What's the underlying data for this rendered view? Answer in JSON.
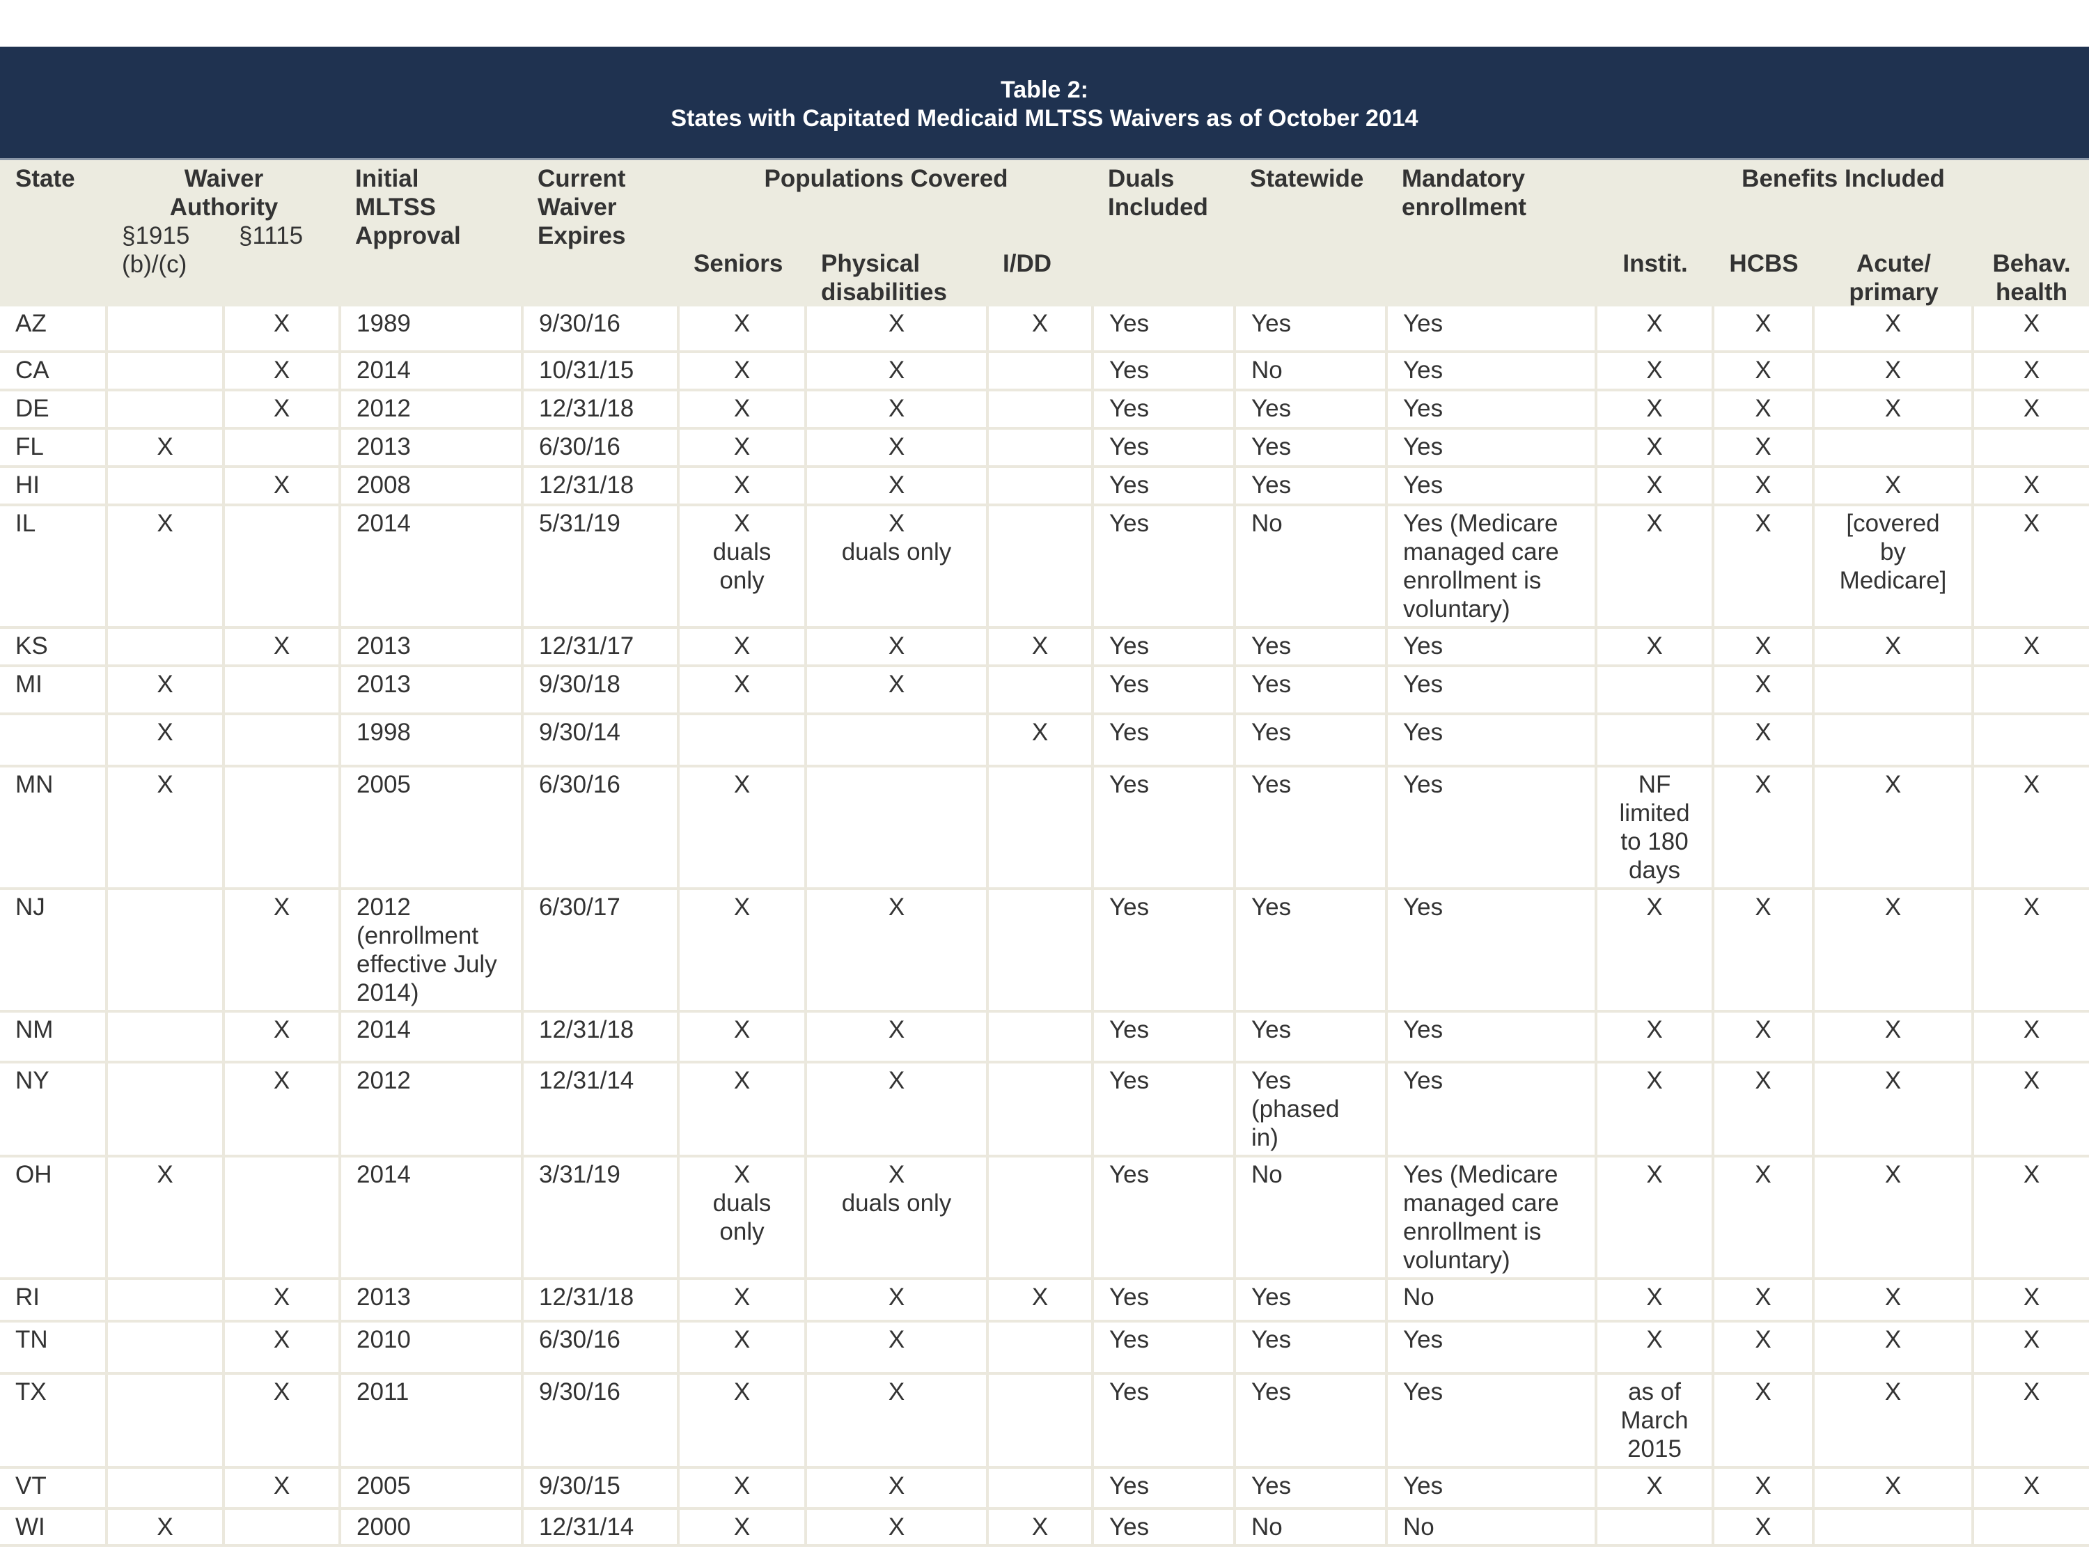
{
  "title": {
    "line1": "Table 2:",
    "line2": "States with Capitated Medicaid MLTSS Waivers as of October 2014"
  },
  "header": {
    "state": "State",
    "waiver_authority": "Waiver\nAuthority",
    "s1915": "§1915\n(b)/(c)",
    "s1115": "§1115",
    "initial": "Initial\nMLTSS\nApproval",
    "current": "Current\nWaiver\nExpires",
    "populations": "Populations Covered",
    "seniors": "Seniors",
    "physical": "Physical\ndisabilities",
    "idd": "I/DD",
    "duals": "Duals\nIncluded",
    "statewide": "Statewide",
    "mandatory": "Mandatory\nenrollment",
    "benefits": "Benefits Included",
    "instit": "Instit.",
    "hcbs": "HCBS",
    "acute": "Acute/\nprimary",
    "behav": "Behav.\nhealth"
  },
  "rows": [
    [
      "AZ",
      "",
      "X",
      "1989",
      "9/30/16",
      "X",
      "X",
      "X",
      "Yes",
      "Yes",
      "Yes",
      "X",
      "X",
      "X",
      "X"
    ],
    [
      "CA",
      "",
      "X",
      "2014",
      "10/31/15",
      "X",
      "X",
      "",
      "Yes",
      "No",
      "Yes",
      "X",
      "X",
      "X",
      "X"
    ],
    [
      "DE",
      "",
      "X",
      "2012",
      "12/31/18",
      "X",
      "X",
      "",
      "Yes",
      "Yes",
      "Yes",
      "X",
      "X",
      "X",
      "X"
    ],
    [
      "FL",
      "X",
      "",
      "2013",
      "6/30/16",
      "X",
      "X",
      "",
      "Yes",
      "Yes",
      "Yes",
      "X",
      "X",
      "",
      ""
    ],
    [
      "HI",
      "",
      "X",
      "2008",
      "12/31/18",
      "X",
      "X",
      "",
      "Yes",
      "Yes",
      "Yes",
      "X",
      "X",
      "X",
      "X"
    ],
    [
      "IL",
      "X",
      "",
      "2014",
      "5/31/19",
      "X\nduals\nonly",
      "X\nduals only",
      "",
      "Yes",
      "No",
      "Yes (Medicare managed care enrollment is voluntary)",
      "X",
      "X",
      "[covered\nby\nMedicare]",
      "X"
    ],
    [
      "KS",
      "",
      "X",
      "2013",
      "12/31/17",
      "X",
      "X",
      "X",
      "Yes",
      "Yes",
      "Yes",
      "X",
      "X",
      "X",
      "X"
    ],
    [
      "MI",
      "X",
      "",
      "2013",
      "9/30/18",
      "X",
      "X",
      "",
      "Yes",
      "Yes",
      "Yes",
      "",
      "X",
      "",
      ""
    ],
    [
      "",
      "X",
      "",
      "1998",
      "9/30/14",
      "",
      "",
      "X",
      "Yes",
      "Yes",
      "Yes",
      "",
      "X",
      "",
      ""
    ],
    [
      "MN",
      "X",
      "",
      "2005",
      "6/30/16",
      "X",
      "",
      "",
      "Yes",
      "Yes",
      "Yes",
      "NF\nlimited\nto 180\ndays",
      "X",
      "X",
      "X"
    ],
    [
      "NJ",
      "",
      "X",
      "2012 (enrollment effective July 2014)",
      "6/30/17",
      "X",
      "X",
      "",
      "Yes",
      "Yes",
      "Yes",
      "X",
      "X",
      "X",
      "X"
    ],
    [
      "NM",
      "",
      "X",
      "2014",
      "12/31/18",
      "X",
      "X",
      "",
      "Yes",
      "Yes",
      "Yes",
      "X",
      "X",
      "X",
      "X"
    ],
    [
      "NY",
      "",
      "X",
      "2012",
      "12/31/14",
      "X",
      "X",
      "",
      "Yes",
      "Yes\n(phased\nin)",
      "Yes",
      "X",
      "X",
      "X",
      "X"
    ],
    [
      "OH",
      "X",
      "",
      "2014",
      "3/31/19",
      "X\nduals\nonly",
      "X\nduals only",
      "",
      "Yes",
      "No",
      "Yes (Medicare managed care enrollment is voluntary)",
      "X",
      "X",
      "X",
      "X"
    ],
    [
      "RI",
      "",
      "X",
      "2013",
      "12/31/18",
      "X",
      "X",
      "X",
      "Yes",
      "Yes",
      "No",
      "X",
      "X",
      "X",
      "X"
    ],
    [
      "TN",
      "",
      "X",
      "2010",
      "6/30/16",
      "X",
      "X",
      "",
      "Yes",
      "Yes",
      "Yes",
      "X",
      "X",
      "X",
      "X"
    ],
    [
      "TX",
      "",
      "X",
      "2011",
      "9/30/16",
      "X",
      "X",
      "",
      "Yes",
      "Yes",
      "Yes",
      "as of\nMarch\n2015",
      "X",
      "X",
      "X"
    ],
    [
      "VT",
      "",
      "X",
      "2005",
      "9/30/15",
      "X",
      "X",
      "",
      "Yes",
      "Yes",
      "Yes",
      "X",
      "X",
      "X",
      "X"
    ],
    [
      "WI",
      "X",
      "",
      "2000",
      "12/31/14",
      "X",
      "X",
      "X",
      "Yes",
      "No",
      "No",
      "",
      "X",
      "",
      ""
    ]
  ]
}
